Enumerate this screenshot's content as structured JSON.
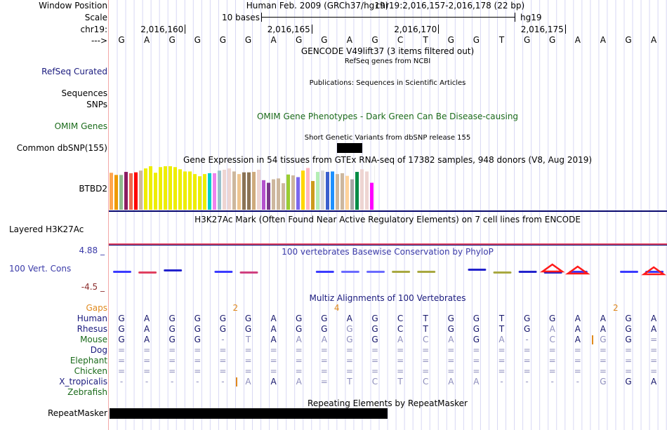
{
  "header": {
    "window_position_label": "Window Position",
    "scale_label": "Scale",
    "chrom_label": "chr19:",
    "strand_label": "--->",
    "assembly_title": "Human Feb. 2009 (GRCh37/hg19)",
    "position": "chr19:2,016,157-2,016,178 (22 bp)",
    "scale_text": "10 bases",
    "scale_assembly": "hg19",
    "ticks": [
      "2,016,160",
      "2,016,165",
      "2,016,170",
      "2,016,175"
    ]
  },
  "sequence": [
    "G",
    "A",
    "G",
    "G",
    "G",
    "G",
    "A",
    "G",
    "G",
    "A",
    "G",
    "C",
    "T",
    "G",
    "G",
    "T",
    "G",
    "G",
    "A",
    "A",
    "G",
    "A"
  ],
  "tracks": {
    "gencode_title": "GENCODE V49lift37 (3 items filtered out)",
    "refseq_label": "RefSeq Curated",
    "refseq_title": "RefSeq genes from NCBI",
    "publications_title": "Publications: Sequences in Scientific Articles",
    "sequences_label": "Sequences",
    "snps_label": "SNPs",
    "omim_title": "OMIM Gene Phenotypes - Dark Green Can Be Disease-causing",
    "omim_label": "OMIM Genes",
    "dbsnp_title": "Short Genetic Variants from dbSNP release 155",
    "dbsnp_label": "Common dbSNP(155)",
    "gtex_title": "Gene Expression in 54 tissues from GTEx RNA-seq of 17382 samples, 948 donors (V8, Aug 2019)",
    "gtex_label": "BTBD2",
    "h3k27ac_title": "H3K27Ac Mark (Often Found Near Active Regulatory Elements) on 7 cell lines from ENCODE",
    "h3k27ac_label": "Layered H3K27Ac",
    "cons_max": "4.88 _",
    "cons_min": "-4.5 _",
    "cons_label": "100 Vert. Cons",
    "cons_title": "100 vertebrates Basewise Conservation by PhyloP",
    "multiz_title": "Multiz Alignments of 100 Vertebrates",
    "repeat_title": "Repeating Elements by RepeatMasker",
    "repeat_label": "RepeatMasker"
  },
  "gtex_bars": {
    "relative_heights": [
      0.85,
      0.8,
      0.8,
      0.87,
      0.84,
      0.86,
      0.9,
      0.95,
      1.0,
      0.85,
      0.98,
      1.0,
      1.0,
      0.98,
      0.93,
      0.88,
      0.88,
      0.82,
      0.77,
      0.82,
      0.84,
      0.84,
      0.9,
      0.92,
      0.95,
      0.88,
      0.82,
      0.86,
      0.86,
      0.87,
      0.92,
      0.68,
      0.62,
      0.7,
      0.72,
      0.61,
      0.81,
      0.79,
      0.75,
      0.9,
      0.96,
      0.66,
      0.87,
      0.9,
      0.87,
      0.88,
      0.82,
      0.84,
      0.78,
      0.7,
      0.87,
      0.93,
      0.88,
      0.62
    ],
    "colors": [
      "#ffa54f",
      "#ee9a00",
      "#8fbc8f",
      "#8b1c62",
      "#ee6a50",
      "#ff0000",
      "#cdb79e",
      "#eeee00",
      "#eeee00",
      "#eeee00",
      "#eeee00",
      "#eeee00",
      "#eeee00",
      "#eeee00",
      "#eeee00",
      "#eeee00",
      "#eeee00",
      "#eeee00",
      "#eeee00",
      "#eeee00",
      "#00cdcd",
      "#ee82ee",
      "#9ac0cd",
      "#eed5d2",
      "#eed5d2",
      "#cdb79e",
      "#eec591",
      "#8b7355",
      "#8b7355",
      "#cdaa7d",
      "#eed5d2",
      "#b452cd",
      "#7a378b",
      "#cdb79e",
      "#cdb79e",
      "#cdb79e",
      "#9acd32",
      "#cdb79e",
      "#7b68ee",
      "#ffd700",
      "#ffb6c1",
      "#cd9b1d",
      "#b4eeb4",
      "#d9d9d9",
      "#3a5fcd",
      "#1e90ff",
      "#cdb79e",
      "#cdb79e",
      "#ffd39b",
      "#a6a6a6",
      "#008b45",
      "#eed5d2",
      "#eed5d2",
      "#ff00ff"
    ]
  },
  "multiz": {
    "gaps_label": "Gaps",
    "gaps": [
      {
        "base_index": 4,
        "value": "2"
      },
      {
        "base_index": 8,
        "value": "4"
      },
      {
        "base_index": 19,
        "value": "2"
      }
    ],
    "species": [
      {
        "name": "Human",
        "color": "navy",
        "bases": [
          "G",
          "A",
          "G",
          "G",
          "G",
          "G",
          "A",
          "G",
          "G",
          "A",
          "G",
          "C",
          "T",
          "G",
          "G",
          "T",
          "G",
          "G",
          "A",
          "A",
          "G",
          "A"
        ],
        "dim": []
      },
      {
        "name": "Rhesus",
        "color": "navy",
        "bases": [
          "G",
          "A",
          "G",
          "G",
          "G",
          "G",
          "A",
          "G",
          "G",
          "G",
          "G",
          "C",
          "T",
          "G",
          "G",
          "T",
          "G",
          "A",
          "A",
          "A",
          "G",
          "A"
        ],
        "dim": [
          9,
          17
        ]
      },
      {
        "name": "Mouse",
        "color": "green",
        "bases": [
          "G",
          "A",
          "G",
          "G",
          "-",
          "T",
          "A",
          "A",
          "A",
          "G",
          "G",
          "A",
          "C",
          "A",
          "G",
          "A",
          "-",
          "C",
          "A",
          "G",
          "G",
          "="
        ],
        "dim": [
          4,
          5,
          7,
          8,
          9,
          11,
          12,
          13,
          15,
          16,
          17,
          19,
          21
        ]
      },
      {
        "name": "Dog",
        "color": "navy",
        "bases": [
          "=",
          "=",
          "=",
          "=",
          "=",
          "=",
          "=",
          "=",
          "=",
          "=",
          "=",
          "=",
          "=",
          "=",
          "=",
          "=",
          "=",
          "=",
          "=",
          "=",
          "=",
          "="
        ],
        "dim": "all"
      },
      {
        "name": "Elephant",
        "color": "green",
        "bases": [
          "=",
          "=",
          "=",
          "=",
          "=",
          "=",
          "=",
          "=",
          "=",
          "=",
          "=",
          "=",
          "=",
          "=",
          "=",
          "=",
          "=",
          "=",
          "=",
          "=",
          "=",
          "="
        ],
        "dim": "all"
      },
      {
        "name": "Chicken",
        "color": "green",
        "bases": [
          "=",
          "=",
          "=",
          "=",
          "=",
          "=",
          "=",
          "=",
          "=",
          "=",
          "=",
          "=",
          "=",
          "=",
          "=",
          "=",
          "=",
          "=",
          "=",
          "=",
          "=",
          "="
        ],
        "dim": "all"
      },
      {
        "name": "X_tropicalis",
        "color": "navy",
        "bases": [
          "-",
          "-",
          "-",
          "-",
          "-",
          "A",
          "A",
          "A",
          "=",
          "T",
          "C",
          "T",
          "C",
          "A",
          "A",
          "-",
          "-",
          "-",
          "-",
          "G",
          "G",
          "A"
        ],
        "dim": [
          0,
          1,
          2,
          3,
          4,
          5,
          7,
          8,
          9,
          10,
          11,
          12,
          13,
          14,
          15,
          16,
          17,
          18,
          19
        ]
      },
      {
        "name": "Zebrafish",
        "color": "green",
        "bases": [],
        "dim": []
      }
    ]
  },
  "colors": {
    "grid_line": "#d8d8f4",
    "left_border": "#f4a8a8",
    "track_sep_navy": "#0a0a6e",
    "track_sep_red": "#e04060",
    "gaps_orange": "#e08a1e"
  }
}
